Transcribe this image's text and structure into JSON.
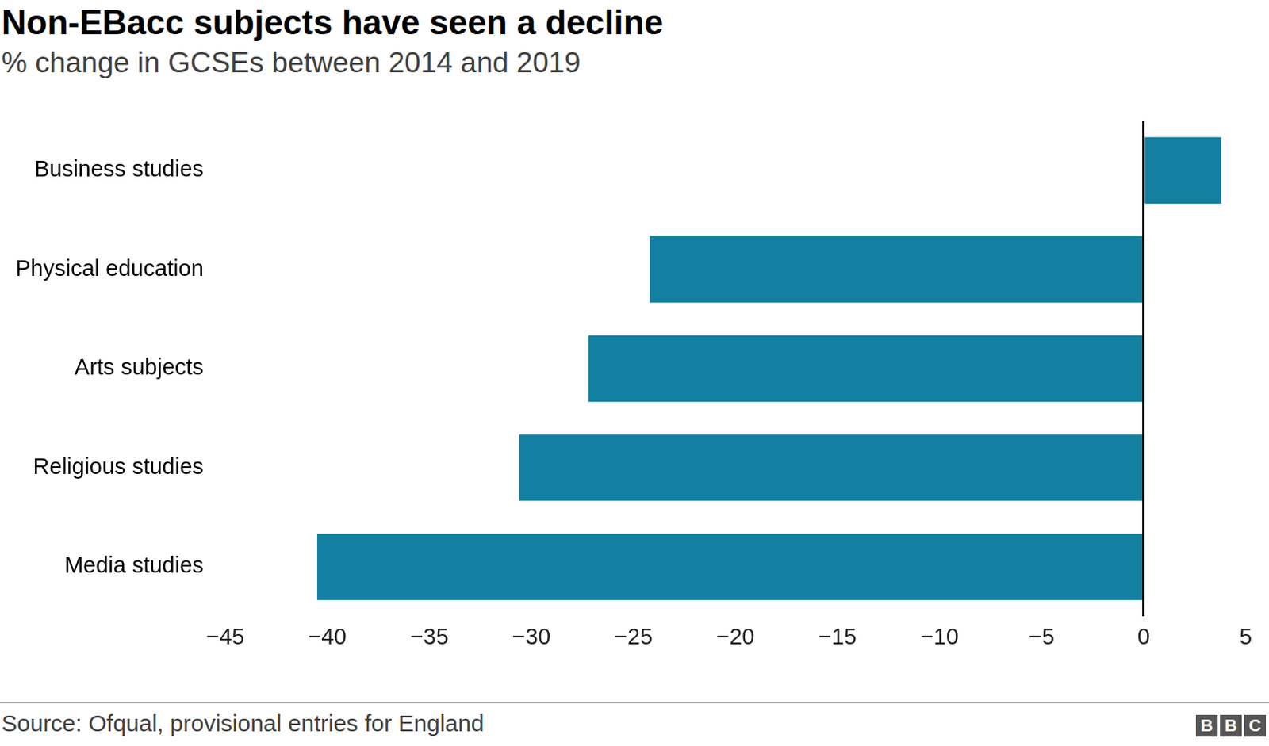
{
  "chart_data": {
    "type": "bar",
    "orientation": "horizontal",
    "title": "Non-EBacc subjects have seen a decline",
    "subtitle": "% change in GCSEs between 2014 and 2019",
    "source": "Source: Ofqual, provisional entries for England",
    "branding": "BBC",
    "categories": [
      "Business studies",
      "Physical education",
      "Arts subjects",
      "Religious studies",
      "Media studies"
    ],
    "values": [
      3.8,
      -24.2,
      -27.2,
      -30.6,
      -40.5
    ],
    "color": "#1380a1",
    "xlim": [
      -45,
      5
    ],
    "xticks": [
      {
        "value": -45,
        "label": "−45"
      },
      {
        "value": -40,
        "label": "−40"
      },
      {
        "value": -35,
        "label": "−35"
      },
      {
        "value": -30,
        "label": "−30"
      },
      {
        "value": -25,
        "label": "−25"
      },
      {
        "value": -20,
        "label": "−20"
      },
      {
        "value": -15,
        "label": "−15"
      },
      {
        "value": -10,
        "label": "−10"
      },
      {
        "value": -5,
        "label": "−5"
      },
      0,
      5
    ],
    "grid": false
  }
}
